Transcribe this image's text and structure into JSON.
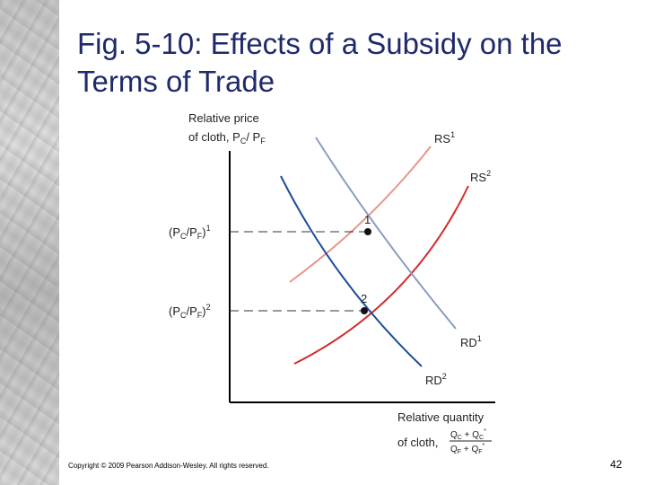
{
  "slide": {
    "title": "Fig. 5-10: Effects of a Subsidy on the Terms of Trade",
    "copyright": "Copyright © 2009 Pearson Addison-Wesley. All rights reserved.",
    "page_number": "42"
  },
  "diagram": {
    "y_axis_label_line1": "Relative price",
    "y_axis_label_line2": "of cloth, P",
    "x_axis_label_line1": "Relative quantity",
    "x_axis_label_line2": "of cloth,",
    "curves": {
      "rs1": {
        "base": "RS",
        "sup": "1",
        "color": "#e8968c"
      },
      "rs2": {
        "base": "RS",
        "sup": "2",
        "color": "#d42a2a"
      },
      "rd1": {
        "base": "RD",
        "sup": "1",
        "color": "#8a9cc0"
      },
      "rd2": {
        "base": "RD",
        "sup": "2",
        "color": "#1c4d9a"
      }
    },
    "points": [
      {
        "label": "1",
        "price_sup": "1"
      },
      {
        "label": "2",
        "price_sup": "2"
      }
    ],
    "colors": {
      "axis": "#000000",
      "dashed": "#333333",
      "title": "#1f2a6b"
    }
  }
}
